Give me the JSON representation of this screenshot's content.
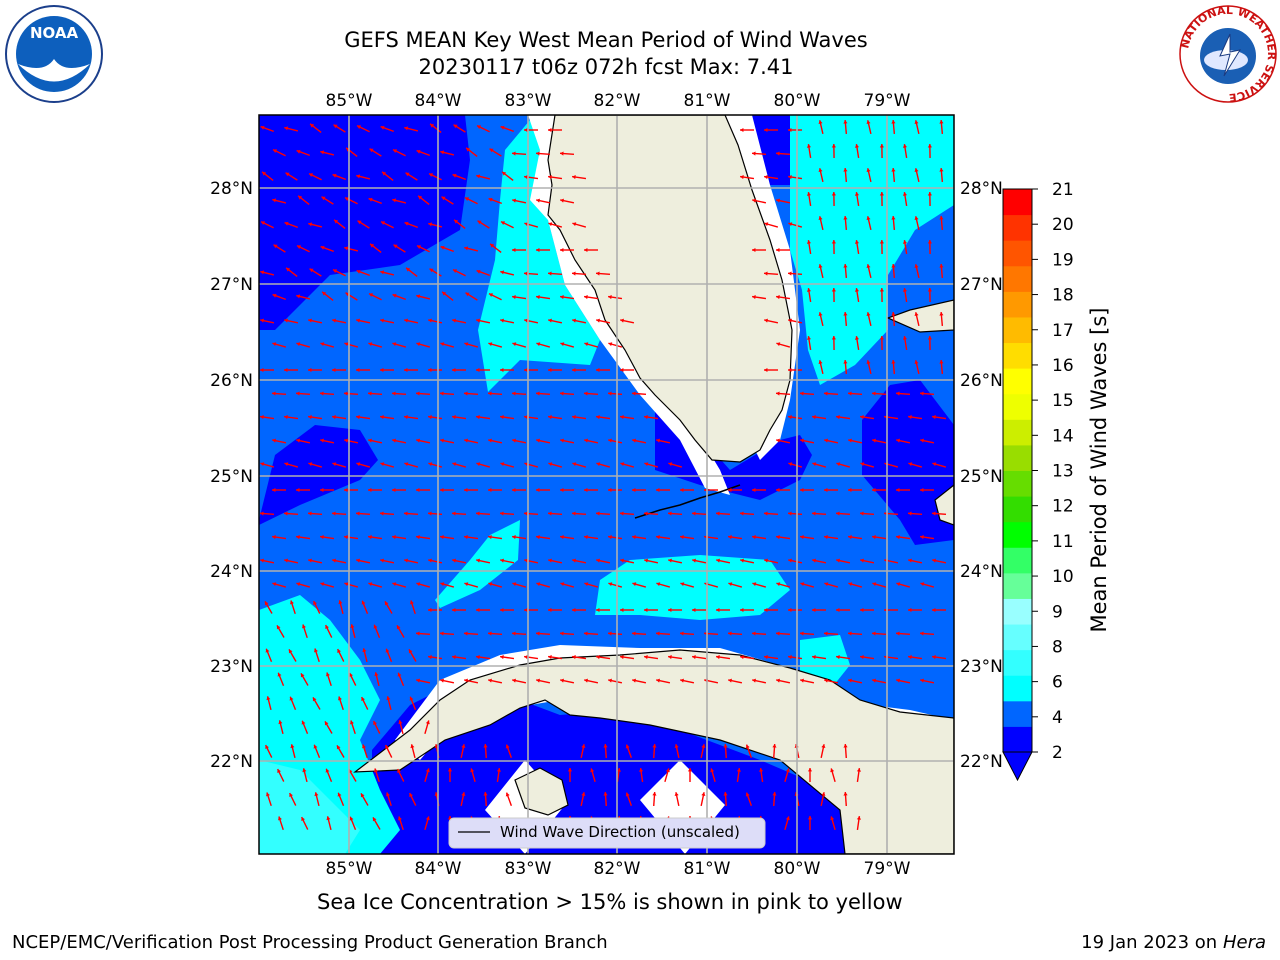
{
  "header": {
    "title_line1": "GEFS MEAN Key West Mean Period of Wind Waves",
    "title_line2": "20230117 t06z 072h fcst   Max: 7.41"
  },
  "logos": {
    "left": "noaa-logo",
    "right": "nws-logo",
    "right_text": "NATIONAL WEATHER SERVICE"
  },
  "map": {
    "lon_labels": [
      "85°W",
      "84°W",
      "83°W",
      "82°W",
      "81°W",
      "80°W",
      "79°W"
    ],
    "lat_labels": [
      "28°N",
      "27°N",
      "26°N",
      "25°N",
      "24°N",
      "23°N",
      "22°N"
    ],
    "legend_label": "Wind Wave Direction (unscaled)",
    "vector_color": "#ff0000",
    "land_color": "#eeeedd"
  },
  "colorbar": {
    "label": "Mean Period of Wind Waves [s]",
    "ticks": [
      "21",
      "20",
      "19",
      "18",
      "17",
      "16",
      "15",
      "14",
      "13",
      "12",
      "11",
      "10",
      "9",
      "8",
      "6",
      "4",
      "2"
    ],
    "colors": [
      "#0000ff",
      "#0066ff",
      "#00ffff",
      "#33ffff",
      "#66ffff",
      "#99ffff",
      "#66ff99",
      "#33ff66",
      "#00ff00",
      "#33dd00",
      "#66dd00",
      "#99dd00",
      "#ccee00",
      "#eeff00",
      "#ffff00",
      "#ffdd00",
      "#ffbb00",
      "#ff9900",
      "#ff7700",
      "#ff5500",
      "#ff3300",
      "#ff0000"
    ]
  },
  "footer": {
    "caption": "Sea Ice Concentration > 15% is shown in pink to yellow",
    "left": "NCEP/EMC/Verification Post Processing Product Generation Branch",
    "date": "19 Jan 2023 on ",
    "machine": "Hera"
  }
}
